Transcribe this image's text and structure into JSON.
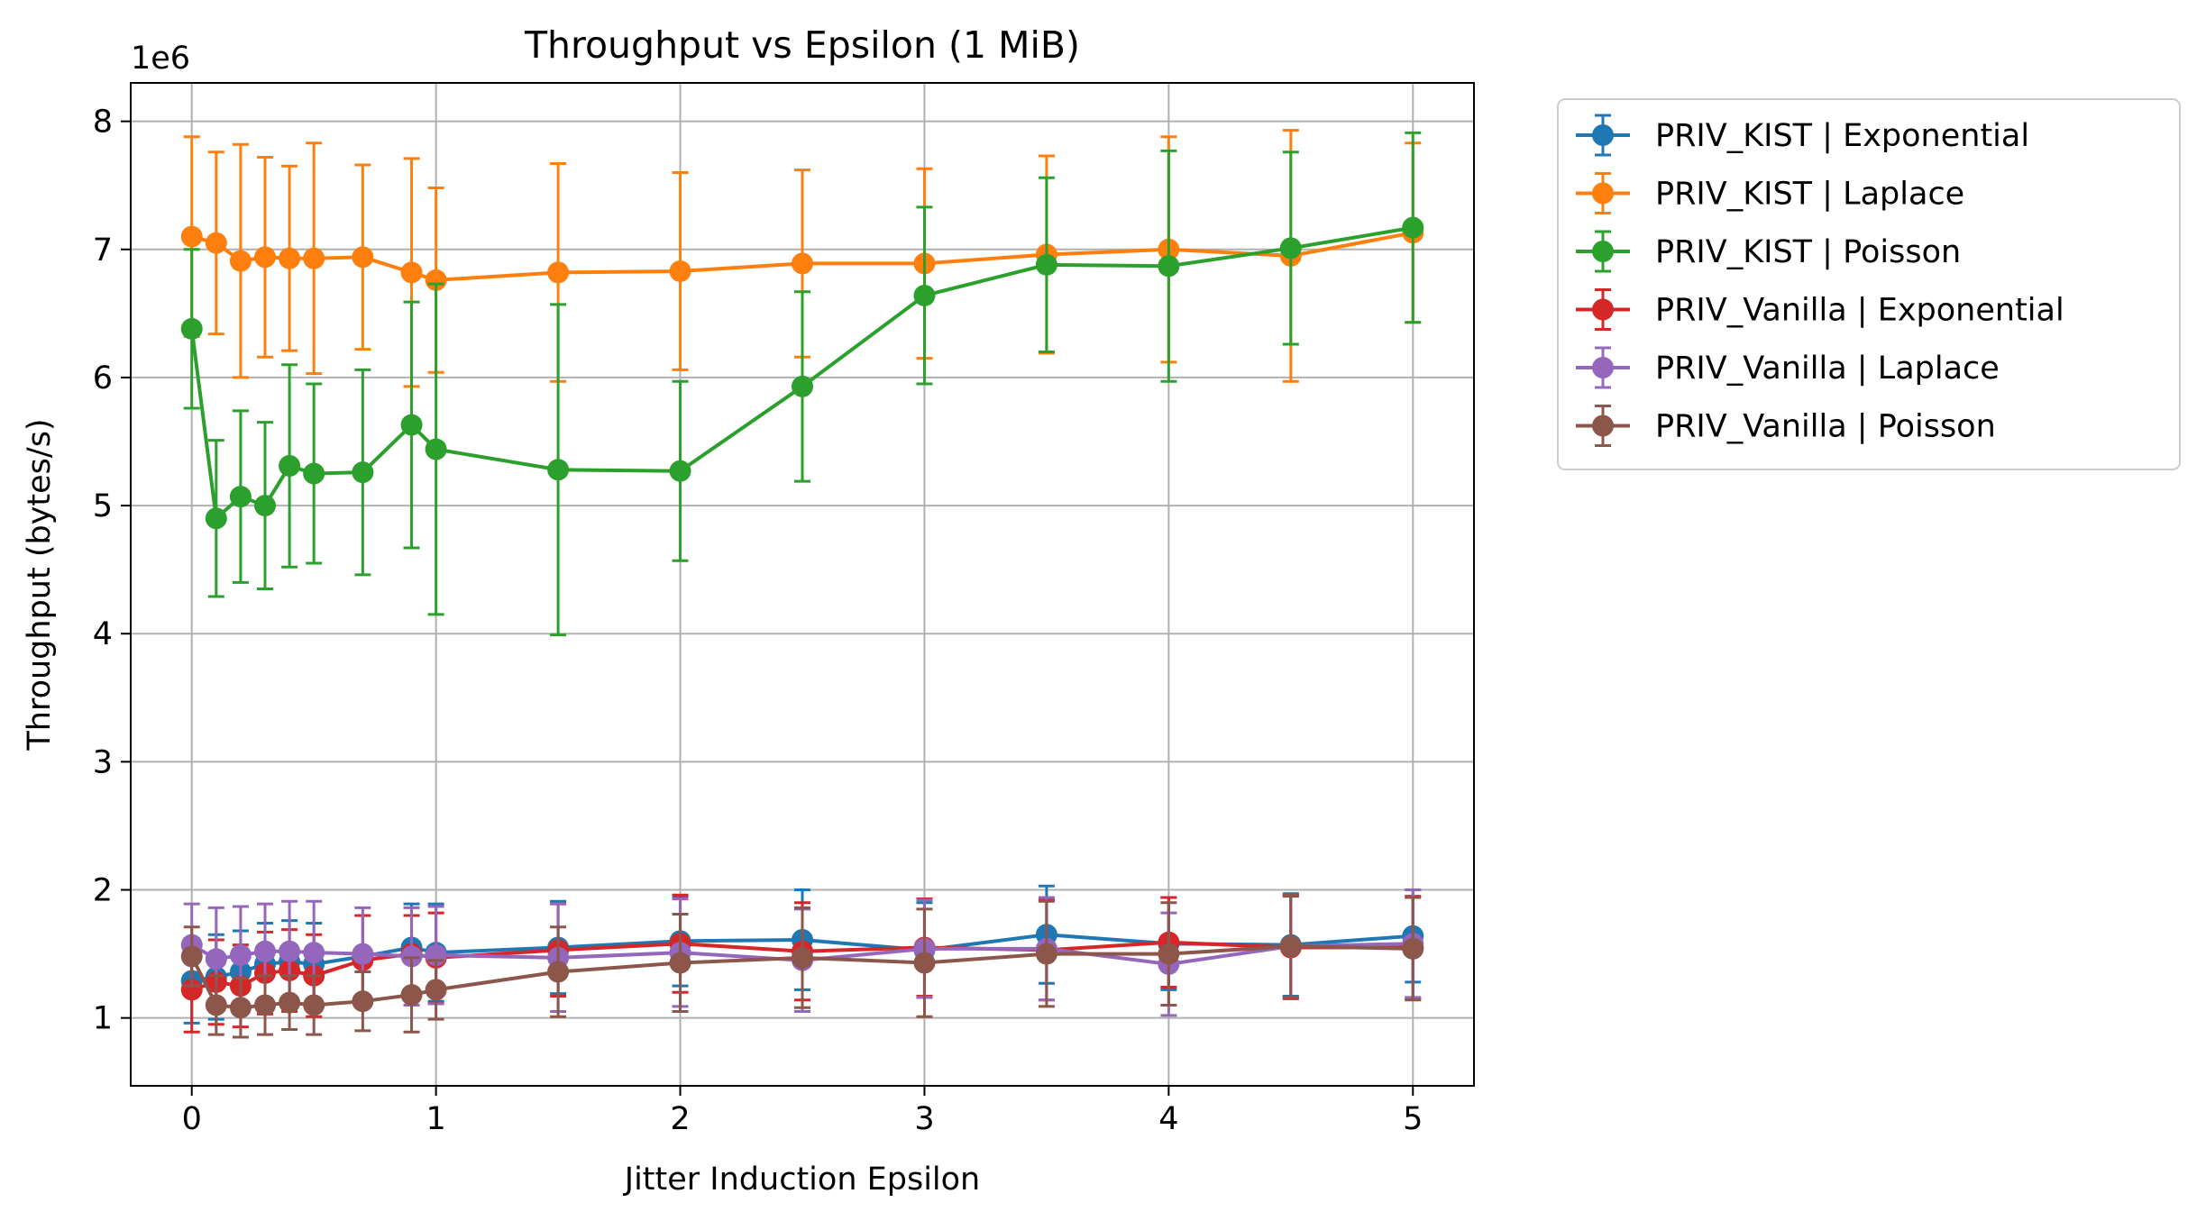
{
  "chart_data": {
    "type": "line",
    "title": "Throughput vs Epsilon (1 MiB)",
    "xlabel": "Jitter Induction Epsilon",
    "ylabel": "Throughput (bytes/s)",
    "y_offset_label": "1e6",
    "xlim": [
      -0.25,
      5.25
    ],
    "ylim": [
      470000,
      8300000
    ],
    "xticks": [
      0,
      1,
      2,
      3,
      4,
      5
    ],
    "xtick_labels": [
      "0",
      "1",
      "2",
      "3",
      "4",
      "5"
    ],
    "yticks": [
      1000000,
      2000000,
      3000000,
      4000000,
      5000000,
      6000000,
      7000000,
      8000000
    ],
    "ytick_labels": [
      "1",
      "2",
      "3",
      "4",
      "5",
      "6",
      "7",
      "8"
    ],
    "grid": true,
    "legend_position": "outside-right",
    "error_bars": true,
    "x": [
      0,
      0.1,
      0.2,
      0.3,
      0.4,
      0.5,
      0.7,
      0.9,
      1,
      1.5,
      2,
      2.5,
      3,
      3.5,
      4,
      4.5,
      5
    ],
    "series": [
      {
        "name": "PRIV_KIST | Exponential",
        "color": "#1f77b4",
        "values": [
          1290000,
          1320000,
          1360000,
          1420000,
          1440000,
          1420000,
          1480000,
          1550000,
          1510000,
          1550000,
          1600000,
          1610000,
          1530000,
          1650000,
          1580000,
          1570000,
          1640000
        ],
        "err": [
          330000,
          330000,
          320000,
          320000,
          320000,
          320000,
          320000,
          340000,
          380000,
          360000,
          350000,
          390000,
          370000,
          380000,
          360000,
          400000,
          360000
        ]
      },
      {
        "name": "PRIV_KIST | Laplace",
        "color": "#ff7f0e",
        "values": [
          7100000,
          7050000,
          6910000,
          6940000,
          6930000,
          6930000,
          6940000,
          6820000,
          6760000,
          6820000,
          6830000,
          6890000,
          6890000,
          6960000,
          7000000,
          6950000,
          7130000
        ],
        "err": [
          780000,
          710000,
          910000,
          780000,
          720000,
          900000,
          720000,
          890000,
          720000,
          850000,
          770000,
          730000,
          740000,
          770000,
          880000,
          980000,
          700000
        ]
      },
      {
        "name": "PRIV_KIST | Poisson",
        "color": "#2ca02c",
        "values": [
          6380000,
          4900000,
          5070000,
          5000000,
          5310000,
          5250000,
          5260000,
          5630000,
          5440000,
          5280000,
          5270000,
          5930000,
          6640000,
          6880000,
          6870000,
          7010000,
          7170000
        ],
        "err": [
          620000,
          610000,
          670000,
          650000,
          790000,
          700000,
          800000,
          960000,
          1290000,
          1290000,
          700000,
          740000,
          690000,
          680000,
          900000,
          750000,
          740000
        ]
      },
      {
        "name": "PRIV_Vanilla | Exponential",
        "color": "#d62728",
        "values": [
          1220000,
          1280000,
          1250000,
          1350000,
          1370000,
          1330000,
          1450000,
          1500000,
          1470000,
          1530000,
          1580000,
          1520000,
          1550000,
          1530000,
          1590000,
          1550000,
          1550000
        ],
        "err": [
          330000,
          330000,
          320000,
          320000,
          320000,
          320000,
          350000,
          300000,
          350000,
          360000,
          380000,
          380000,
          380000,
          390000,
          350000,
          400000,
          400000
        ]
      },
      {
        "name": "PRIV_Vanilla | Laplace",
        "color": "#9467bd",
        "values": [
          1570000,
          1460000,
          1490000,
          1520000,
          1520000,
          1510000,
          1500000,
          1480000,
          1490000,
          1470000,
          1510000,
          1450000,
          1540000,
          1540000,
          1420000,
          1560000,
          1580000
        ],
        "err": [
          320000,
          400000,
          380000,
          370000,
          390000,
          400000,
          360000,
          380000,
          380000,
          420000,
          420000,
          400000,
          380000,
          400000,
          400000,
          400000,
          420000
        ]
      },
      {
        "name": "PRIV_Vanilla | Poisson",
        "color": "#8c564b",
        "values": [
          1480000,
          1100000,
          1080000,
          1100000,
          1120000,
          1100000,
          1130000,
          1180000,
          1220000,
          1360000,
          1430000,
          1470000,
          1430000,
          1500000,
          1500000,
          1560000,
          1540000
        ],
        "err": [
          230000,
          230000,
          230000,
          230000,
          210000,
          230000,
          230000,
          290000,
          230000,
          350000,
          380000,
          390000,
          420000,
          410000,
          400000,
          400000,
          400000
        ]
      }
    ]
  }
}
